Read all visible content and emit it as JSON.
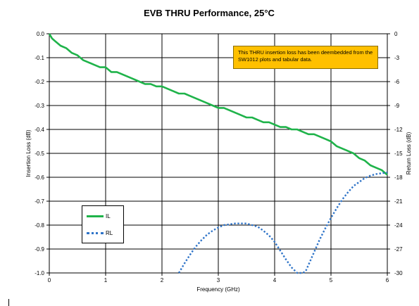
{
  "chart_data": {
    "type": "line",
    "title": "EVB THRU Performance, 25°C",
    "xlabel": "Frequency (GHz)",
    "ylabel": "Insertion Loss (dB)",
    "y2label": "Return Loss (dB)",
    "xlim": [
      0,
      6
    ],
    "ylim": [
      -1.0,
      0.0
    ],
    "y2lim": [
      -30,
      0
    ],
    "x_ticks": [
      "0",
      "1",
      "2",
      "3",
      "4",
      "5",
      "6"
    ],
    "y_ticks": [
      "0.0",
      "-0.1",
      "-0.2",
      "-0.3",
      "-0.4",
      "-0.5",
      "-0.6",
      "-0.7",
      "-0.8",
      "-0.9",
      "-1.0"
    ],
    "y2_ticks": [
      "0",
      "-3",
      "-6",
      "-9",
      "-12",
      "-15",
      "-18",
      "-21",
      "-24",
      "-27",
      "-30"
    ],
    "grid": true,
    "legend_position": "bottom-left",
    "annotation": "This THRU insertion loss has been deembedded from the SW1012 plots and tabular data.",
    "series": [
      {
        "name": "IL",
        "axis": "left",
        "color": "#1fb34a",
        "style": "solid",
        "x": [
          0,
          0.05,
          0.1,
          0.2,
          0.3,
          0.4,
          0.5,
          0.6,
          0.7,
          0.8,
          0.9,
          1.0,
          1.1,
          1.2,
          1.3,
          1.4,
          1.5,
          1.6,
          1.7,
          1.8,
          1.9,
          2.0,
          2.1,
          2.2,
          2.3,
          2.4,
          2.5,
          2.6,
          2.7,
          2.8,
          2.9,
          3.0,
          3.1,
          3.2,
          3.3,
          3.4,
          3.5,
          3.6,
          3.7,
          3.8,
          3.9,
          4.0,
          4.1,
          4.2,
          4.3,
          4.4,
          4.5,
          4.6,
          4.7,
          4.8,
          4.9,
          5.0,
          5.1,
          5.2,
          5.3,
          5.4,
          5.5,
          5.6,
          5.7,
          5.8,
          5.9,
          6.0
        ],
        "values": [
          0.0,
          -0.02,
          -0.03,
          -0.05,
          -0.06,
          -0.08,
          -0.09,
          -0.11,
          -0.12,
          -0.13,
          -0.14,
          -0.14,
          -0.16,
          -0.16,
          -0.17,
          -0.18,
          -0.19,
          -0.2,
          -0.21,
          -0.21,
          -0.22,
          -0.22,
          -0.23,
          -0.24,
          -0.25,
          -0.25,
          -0.26,
          -0.27,
          -0.28,
          -0.29,
          -0.3,
          -0.31,
          -0.31,
          -0.32,
          -0.33,
          -0.34,
          -0.35,
          -0.35,
          -0.36,
          -0.37,
          -0.37,
          -0.38,
          -0.39,
          -0.39,
          -0.4,
          -0.4,
          -0.41,
          -0.42,
          -0.42,
          -0.43,
          -0.44,
          -0.45,
          -0.47,
          -0.48,
          -0.49,
          -0.5,
          -0.52,
          -0.53,
          -0.55,
          -0.56,
          -0.57,
          -0.59
        ]
      },
      {
        "name": "RL",
        "axis": "right",
        "color": "#2f74c8",
        "style": "dotted",
        "x": [
          2.3,
          2.4,
          2.5,
          2.6,
          2.7,
          2.8,
          2.9,
          3.0,
          3.1,
          3.2,
          3.3,
          3.4,
          3.5,
          3.6,
          3.7,
          3.8,
          3.9,
          4.0,
          4.1,
          4.2,
          4.3,
          4.4,
          4.5,
          4.55,
          4.6,
          4.7,
          4.8,
          4.9,
          5.0,
          5.1,
          5.2,
          5.3,
          5.4,
          5.5,
          5.6,
          5.7,
          5.8,
          5.9,
          6.0
        ],
        "values": [
          -30.0,
          -28.8,
          -27.7,
          -26.7,
          -25.9,
          -25.2,
          -24.7,
          -24.3,
          -24.0,
          -23.9,
          -23.8,
          -23.8,
          -23.8,
          -24.0,
          -24.2,
          -24.7,
          -25.3,
          -26.1,
          -27.2,
          -28.3,
          -29.3,
          -30.0,
          -30.0,
          -29.8,
          -29.0,
          -27.4,
          -25.8,
          -24.4,
          -23.1,
          -21.9,
          -20.8,
          -19.9,
          -19.1,
          -18.6,
          -18.1,
          -17.8,
          -17.6,
          -17.5,
          -17.4
        ]
      }
    ]
  }
}
